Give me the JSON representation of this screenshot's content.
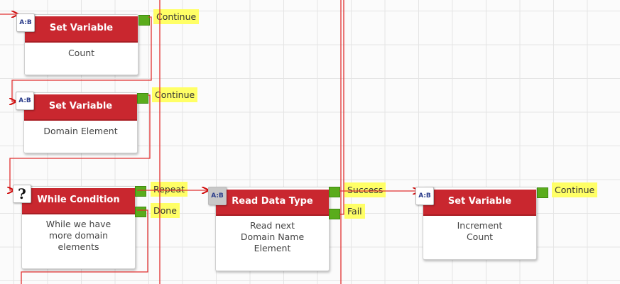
{
  "nodes": [
    {
      "title": "Set Variable",
      "body": "Count",
      "icon": "ab-variable-icon",
      "icon_text": "A:B",
      "outputs": [
        "Continue"
      ]
    },
    {
      "title": "Set Variable",
      "body": "Domain Element",
      "icon": "ab-variable-icon",
      "icon_text": "A:B",
      "outputs": [
        "Continue"
      ]
    },
    {
      "title": "While Condition",
      "body": "While we have more domain elements",
      "icon": "question-icon",
      "icon_text": "?",
      "outputs": [
        "Repeat",
        "Done"
      ]
    },
    {
      "title": "Read Data Type",
      "body": "Read next Domain Name Element",
      "icon": "ab-variable-icon",
      "icon_text": "A:B",
      "outputs": [
        "Success",
        "Fail"
      ]
    },
    {
      "title": "Set Variable",
      "body": "Increment Count",
      "icon": "ab-variable-icon",
      "icon_text": "A:B",
      "outputs": [
        "Continue"
      ]
    }
  ],
  "colors": {
    "header": "#c9272f",
    "port": "#5aac1c",
    "label_bg": "#ffff66",
    "wire": "#e03030"
  }
}
